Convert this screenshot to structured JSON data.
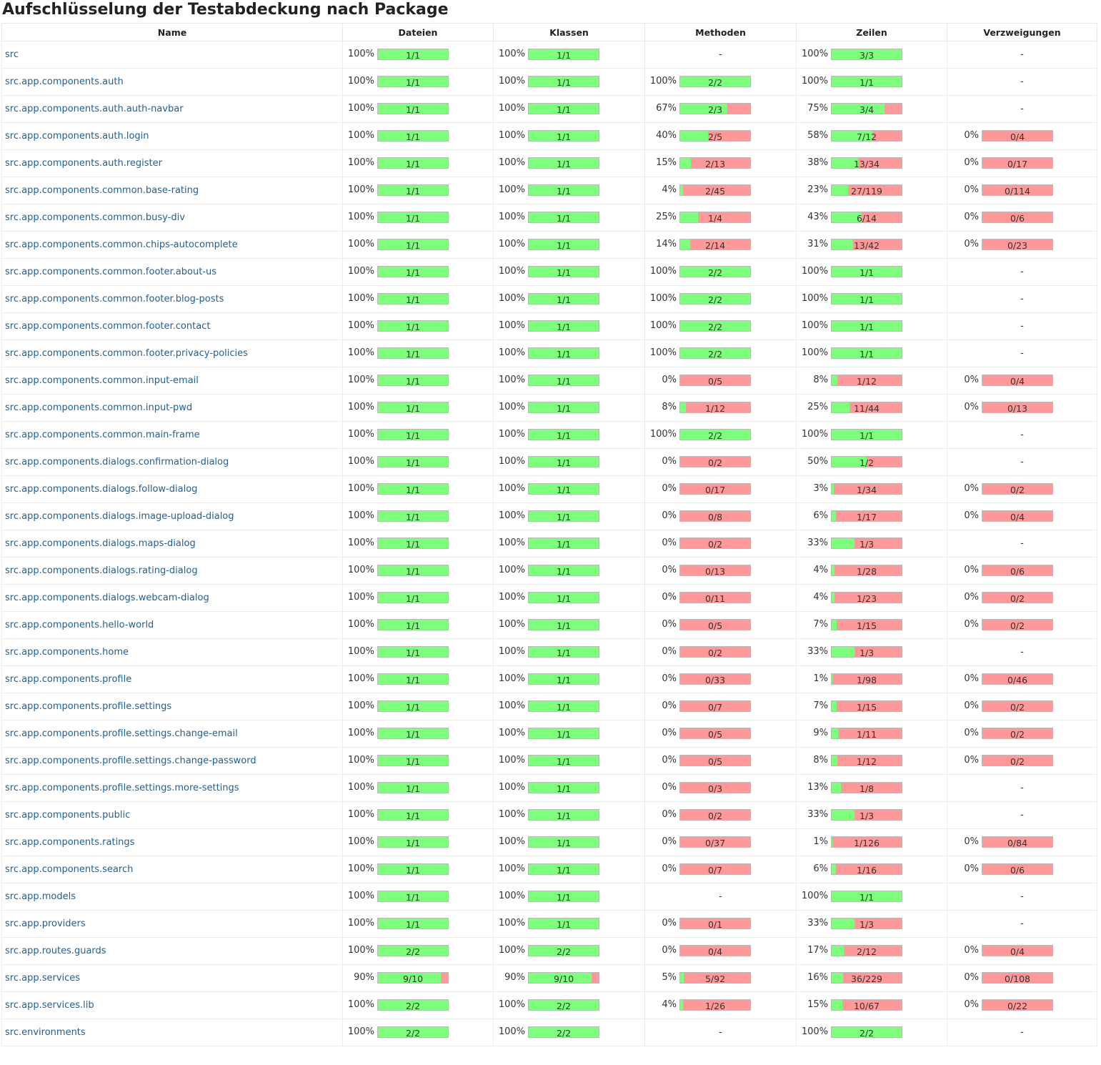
{
  "title": "Aufschlüsselung der Testabdeckung nach Package",
  "columns": [
    "Name",
    "Dateien",
    "Klassen",
    "Methoden",
    "Zeilen",
    "Verzweigungen"
  ],
  "rows": [
    {
      "name": "src",
      "files": {
        "pct": "100%",
        "label": "1/1",
        "value": 1.0
      },
      "classes": {
        "pct": "100%",
        "label": "1/1",
        "value": 1.0
      },
      "methods": null,
      "lines": {
        "pct": "100%",
        "label": "3/3",
        "value": 1.0
      },
      "branches": null
    },
    {
      "name": "src.app.components.auth",
      "files": {
        "pct": "100%",
        "label": "1/1",
        "value": 1.0
      },
      "classes": {
        "pct": "100%",
        "label": "1/1",
        "value": 1.0
      },
      "methods": {
        "pct": "100%",
        "label": "2/2",
        "value": 1.0
      },
      "lines": {
        "pct": "100%",
        "label": "1/1",
        "value": 1.0
      },
      "branches": null
    },
    {
      "name": "src.app.components.auth.auth-navbar",
      "files": {
        "pct": "100%",
        "label": "1/1",
        "value": 1.0
      },
      "classes": {
        "pct": "100%",
        "label": "1/1",
        "value": 1.0
      },
      "methods": {
        "pct": "67%",
        "label": "2/3",
        "value": 0.67
      },
      "lines": {
        "pct": "75%",
        "label": "3/4",
        "value": 0.75
      },
      "branches": null
    },
    {
      "name": "src.app.components.auth.login",
      "files": {
        "pct": "100%",
        "label": "1/1",
        "value": 1.0
      },
      "classes": {
        "pct": "100%",
        "label": "1/1",
        "value": 1.0
      },
      "methods": {
        "pct": "40%",
        "label": "2/5",
        "value": 0.4
      },
      "lines": {
        "pct": "58%",
        "label": "7/12",
        "value": 0.58
      },
      "branches": {
        "pct": "0%",
        "label": "0/4",
        "value": 0
      }
    },
    {
      "name": "src.app.components.auth.register",
      "files": {
        "pct": "100%",
        "label": "1/1",
        "value": 1.0
      },
      "classes": {
        "pct": "100%",
        "label": "1/1",
        "value": 1.0
      },
      "methods": {
        "pct": "15%",
        "label": "2/13",
        "value": 0.15
      },
      "lines": {
        "pct": "38%",
        "label": "13/34",
        "value": 0.38
      },
      "branches": {
        "pct": "0%",
        "label": "0/17",
        "value": 0
      }
    },
    {
      "name": "src.app.components.common.base-rating",
      "files": {
        "pct": "100%",
        "label": "1/1",
        "value": 1.0
      },
      "classes": {
        "pct": "100%",
        "label": "1/1",
        "value": 1.0
      },
      "methods": {
        "pct": "4%",
        "label": "2/45",
        "value": 0.04
      },
      "lines": {
        "pct": "23%",
        "label": "27/119",
        "value": 0.23
      },
      "branches": {
        "pct": "0%",
        "label": "0/114",
        "value": 0
      }
    },
    {
      "name": "src.app.components.common.busy-div",
      "files": {
        "pct": "100%",
        "label": "1/1",
        "value": 1.0
      },
      "classes": {
        "pct": "100%",
        "label": "1/1",
        "value": 1.0
      },
      "methods": {
        "pct": "25%",
        "label": "1/4",
        "value": 0.25
      },
      "lines": {
        "pct": "43%",
        "label": "6/14",
        "value": 0.43
      },
      "branches": {
        "pct": "0%",
        "label": "0/6",
        "value": 0
      }
    },
    {
      "name": "src.app.components.common.chips-autocomplete",
      "files": {
        "pct": "100%",
        "label": "1/1",
        "value": 1.0
      },
      "classes": {
        "pct": "100%",
        "label": "1/1",
        "value": 1.0
      },
      "methods": {
        "pct": "14%",
        "label": "2/14",
        "value": 0.14
      },
      "lines": {
        "pct": "31%",
        "label": "13/42",
        "value": 0.31
      },
      "branches": {
        "pct": "0%",
        "label": "0/23",
        "value": 0
      }
    },
    {
      "name": "src.app.components.common.footer.about-us",
      "files": {
        "pct": "100%",
        "label": "1/1",
        "value": 1.0
      },
      "classes": {
        "pct": "100%",
        "label": "1/1",
        "value": 1.0
      },
      "methods": {
        "pct": "100%",
        "label": "2/2",
        "value": 1.0
      },
      "lines": {
        "pct": "100%",
        "label": "1/1",
        "value": 1.0
      },
      "branches": null
    },
    {
      "name": "src.app.components.common.footer.blog-posts",
      "files": {
        "pct": "100%",
        "label": "1/1",
        "value": 1.0
      },
      "classes": {
        "pct": "100%",
        "label": "1/1",
        "value": 1.0
      },
      "methods": {
        "pct": "100%",
        "label": "2/2",
        "value": 1.0
      },
      "lines": {
        "pct": "100%",
        "label": "1/1",
        "value": 1.0
      },
      "branches": null
    },
    {
      "name": "src.app.components.common.footer.contact",
      "files": {
        "pct": "100%",
        "label": "1/1",
        "value": 1.0
      },
      "classes": {
        "pct": "100%",
        "label": "1/1",
        "value": 1.0
      },
      "methods": {
        "pct": "100%",
        "label": "2/2",
        "value": 1.0
      },
      "lines": {
        "pct": "100%",
        "label": "1/1",
        "value": 1.0
      },
      "branches": null
    },
    {
      "name": "src.app.components.common.footer.privacy-policies",
      "files": {
        "pct": "100%",
        "label": "1/1",
        "value": 1.0
      },
      "classes": {
        "pct": "100%",
        "label": "1/1",
        "value": 1.0
      },
      "methods": {
        "pct": "100%",
        "label": "2/2",
        "value": 1.0
      },
      "lines": {
        "pct": "100%",
        "label": "1/1",
        "value": 1.0
      },
      "branches": null
    },
    {
      "name": "src.app.components.common.input-email",
      "files": {
        "pct": "100%",
        "label": "1/1",
        "value": 1.0
      },
      "classes": {
        "pct": "100%",
        "label": "1/1",
        "value": 1.0
      },
      "methods": {
        "pct": "0%",
        "label": "0/5",
        "value": 0
      },
      "lines": {
        "pct": "8%",
        "label": "1/12",
        "value": 0.08
      },
      "branches": {
        "pct": "0%",
        "label": "0/4",
        "value": 0
      }
    },
    {
      "name": "src.app.components.common.input-pwd",
      "files": {
        "pct": "100%",
        "label": "1/1",
        "value": 1.0
      },
      "classes": {
        "pct": "100%",
        "label": "1/1",
        "value": 1.0
      },
      "methods": {
        "pct": "8%",
        "label": "1/12",
        "value": 0.08
      },
      "lines": {
        "pct": "25%",
        "label": "11/44",
        "value": 0.25
      },
      "branches": {
        "pct": "0%",
        "label": "0/13",
        "value": 0
      }
    },
    {
      "name": "src.app.components.common.main-frame",
      "files": {
        "pct": "100%",
        "label": "1/1",
        "value": 1.0
      },
      "classes": {
        "pct": "100%",
        "label": "1/1",
        "value": 1.0
      },
      "methods": {
        "pct": "100%",
        "label": "2/2",
        "value": 1.0
      },
      "lines": {
        "pct": "100%",
        "label": "1/1",
        "value": 1.0
      },
      "branches": null
    },
    {
      "name": "src.app.components.dialogs.confirmation-dialog",
      "files": {
        "pct": "100%",
        "label": "1/1",
        "value": 1.0
      },
      "classes": {
        "pct": "100%",
        "label": "1/1",
        "value": 1.0
      },
      "methods": {
        "pct": "0%",
        "label": "0/2",
        "value": 0
      },
      "lines": {
        "pct": "50%",
        "label": "1/2",
        "value": 0.5
      },
      "branches": null
    },
    {
      "name": "src.app.components.dialogs.follow-dialog",
      "files": {
        "pct": "100%",
        "label": "1/1",
        "value": 1.0
      },
      "classes": {
        "pct": "100%",
        "label": "1/1",
        "value": 1.0
      },
      "methods": {
        "pct": "0%",
        "label": "0/17",
        "value": 0
      },
      "lines": {
        "pct": "3%",
        "label": "1/34",
        "value": 0.03
      },
      "branches": {
        "pct": "0%",
        "label": "0/2",
        "value": 0
      }
    },
    {
      "name": "src.app.components.dialogs.image-upload-dialog",
      "files": {
        "pct": "100%",
        "label": "1/1",
        "value": 1.0
      },
      "classes": {
        "pct": "100%",
        "label": "1/1",
        "value": 1.0
      },
      "methods": {
        "pct": "0%",
        "label": "0/8",
        "value": 0
      },
      "lines": {
        "pct": "6%",
        "label": "1/17",
        "value": 0.06
      },
      "branches": {
        "pct": "0%",
        "label": "0/4",
        "value": 0
      }
    },
    {
      "name": "src.app.components.dialogs.maps-dialog",
      "files": {
        "pct": "100%",
        "label": "1/1",
        "value": 1.0
      },
      "classes": {
        "pct": "100%",
        "label": "1/1",
        "value": 1.0
      },
      "methods": {
        "pct": "0%",
        "label": "0/2",
        "value": 0
      },
      "lines": {
        "pct": "33%",
        "label": "1/3",
        "value": 0.33
      },
      "branches": null
    },
    {
      "name": "src.app.components.dialogs.rating-dialog",
      "files": {
        "pct": "100%",
        "label": "1/1",
        "value": 1.0
      },
      "classes": {
        "pct": "100%",
        "label": "1/1",
        "value": 1.0
      },
      "methods": {
        "pct": "0%",
        "label": "0/13",
        "value": 0
      },
      "lines": {
        "pct": "4%",
        "label": "1/28",
        "value": 0.04
      },
      "branches": {
        "pct": "0%",
        "label": "0/6",
        "value": 0
      }
    },
    {
      "name": "src.app.components.dialogs.webcam-dialog",
      "files": {
        "pct": "100%",
        "label": "1/1",
        "value": 1.0
      },
      "classes": {
        "pct": "100%",
        "label": "1/1",
        "value": 1.0
      },
      "methods": {
        "pct": "0%",
        "label": "0/11",
        "value": 0
      },
      "lines": {
        "pct": "4%",
        "label": "1/23",
        "value": 0.04
      },
      "branches": {
        "pct": "0%",
        "label": "0/2",
        "value": 0
      }
    },
    {
      "name": "src.app.components.hello-world",
      "files": {
        "pct": "100%",
        "label": "1/1",
        "value": 1.0
      },
      "classes": {
        "pct": "100%",
        "label": "1/1",
        "value": 1.0
      },
      "methods": {
        "pct": "0%",
        "label": "0/5",
        "value": 0
      },
      "lines": {
        "pct": "7%",
        "label": "1/15",
        "value": 0.07
      },
      "branches": {
        "pct": "0%",
        "label": "0/2",
        "value": 0
      }
    },
    {
      "name": "src.app.components.home",
      "files": {
        "pct": "100%",
        "label": "1/1",
        "value": 1.0
      },
      "classes": {
        "pct": "100%",
        "label": "1/1",
        "value": 1.0
      },
      "methods": {
        "pct": "0%",
        "label": "0/2",
        "value": 0
      },
      "lines": {
        "pct": "33%",
        "label": "1/3",
        "value": 0.33
      },
      "branches": null
    },
    {
      "name": "src.app.components.profile",
      "files": {
        "pct": "100%",
        "label": "1/1",
        "value": 1.0
      },
      "classes": {
        "pct": "100%",
        "label": "1/1",
        "value": 1.0
      },
      "methods": {
        "pct": "0%",
        "label": "0/33",
        "value": 0
      },
      "lines": {
        "pct": "1%",
        "label": "1/98",
        "value": 0.01
      },
      "branches": {
        "pct": "0%",
        "label": "0/46",
        "value": 0
      }
    },
    {
      "name": "src.app.components.profile.settings",
      "files": {
        "pct": "100%",
        "label": "1/1",
        "value": 1.0
      },
      "classes": {
        "pct": "100%",
        "label": "1/1",
        "value": 1.0
      },
      "methods": {
        "pct": "0%",
        "label": "0/7",
        "value": 0
      },
      "lines": {
        "pct": "7%",
        "label": "1/15",
        "value": 0.07
      },
      "branches": {
        "pct": "0%",
        "label": "0/2",
        "value": 0
      }
    },
    {
      "name": "src.app.components.profile.settings.change-email",
      "files": {
        "pct": "100%",
        "label": "1/1",
        "value": 1.0
      },
      "classes": {
        "pct": "100%",
        "label": "1/1",
        "value": 1.0
      },
      "methods": {
        "pct": "0%",
        "label": "0/5",
        "value": 0
      },
      "lines": {
        "pct": "9%",
        "label": "1/11",
        "value": 0.09
      },
      "branches": {
        "pct": "0%",
        "label": "0/2",
        "value": 0
      }
    },
    {
      "name": "src.app.components.profile.settings.change-password",
      "files": {
        "pct": "100%",
        "label": "1/1",
        "value": 1.0
      },
      "classes": {
        "pct": "100%",
        "label": "1/1",
        "value": 1.0
      },
      "methods": {
        "pct": "0%",
        "label": "0/5",
        "value": 0
      },
      "lines": {
        "pct": "8%",
        "label": "1/12",
        "value": 0.08
      },
      "branches": {
        "pct": "0%",
        "label": "0/2",
        "value": 0
      }
    },
    {
      "name": "src.app.components.profile.settings.more-settings",
      "files": {
        "pct": "100%",
        "label": "1/1",
        "value": 1.0
      },
      "classes": {
        "pct": "100%",
        "label": "1/1",
        "value": 1.0
      },
      "methods": {
        "pct": "0%",
        "label": "0/3",
        "value": 0
      },
      "lines": {
        "pct": "13%",
        "label": "1/8",
        "value": 0.13
      },
      "branches": null
    },
    {
      "name": "src.app.components.public",
      "files": {
        "pct": "100%",
        "label": "1/1",
        "value": 1.0
      },
      "classes": {
        "pct": "100%",
        "label": "1/1",
        "value": 1.0
      },
      "methods": {
        "pct": "0%",
        "label": "0/2",
        "value": 0
      },
      "lines": {
        "pct": "33%",
        "label": "1/3",
        "value": 0.33
      },
      "branches": null
    },
    {
      "name": "src.app.components.ratings",
      "files": {
        "pct": "100%",
        "label": "1/1",
        "value": 1.0
      },
      "classes": {
        "pct": "100%",
        "label": "1/1",
        "value": 1.0
      },
      "methods": {
        "pct": "0%",
        "label": "0/37",
        "value": 0
      },
      "lines": {
        "pct": "1%",
        "label": "1/126",
        "value": 0.01
      },
      "branches": {
        "pct": "0%",
        "label": "0/84",
        "value": 0
      }
    },
    {
      "name": "src.app.components.search",
      "files": {
        "pct": "100%",
        "label": "1/1",
        "value": 1.0
      },
      "classes": {
        "pct": "100%",
        "label": "1/1",
        "value": 1.0
      },
      "methods": {
        "pct": "0%",
        "label": "0/7",
        "value": 0
      },
      "lines": {
        "pct": "6%",
        "label": "1/16",
        "value": 0.06
      },
      "branches": {
        "pct": "0%",
        "label": "0/6",
        "value": 0
      }
    },
    {
      "name": "src.app.models",
      "files": {
        "pct": "100%",
        "label": "1/1",
        "value": 1.0
      },
      "classes": {
        "pct": "100%",
        "label": "1/1",
        "value": 1.0
      },
      "methods": null,
      "lines": {
        "pct": "100%",
        "label": "1/1",
        "value": 1.0
      },
      "branches": null
    },
    {
      "name": "src.app.providers",
      "files": {
        "pct": "100%",
        "label": "1/1",
        "value": 1.0
      },
      "classes": {
        "pct": "100%",
        "label": "1/1",
        "value": 1.0
      },
      "methods": {
        "pct": "0%",
        "label": "0/1",
        "value": 0
      },
      "lines": {
        "pct": "33%",
        "label": "1/3",
        "value": 0.33
      },
      "branches": null
    },
    {
      "name": "src.app.routes.guards",
      "files": {
        "pct": "100%",
        "label": "2/2",
        "value": 1.0
      },
      "classes": {
        "pct": "100%",
        "label": "2/2",
        "value": 1.0
      },
      "methods": {
        "pct": "0%",
        "label": "0/4",
        "value": 0
      },
      "lines": {
        "pct": "17%",
        "label": "2/12",
        "value": 0.17
      },
      "branches": {
        "pct": "0%",
        "label": "0/4",
        "value": 0
      }
    },
    {
      "name": "src.app.services",
      "files": {
        "pct": "90%",
        "label": "9/10",
        "value": 0.9
      },
      "classes": {
        "pct": "90%",
        "label": "9/10",
        "value": 0.9
      },
      "methods": {
        "pct": "5%",
        "label": "5/92",
        "value": 0.05
      },
      "lines": {
        "pct": "16%",
        "label": "36/229",
        "value": 0.16
      },
      "branches": {
        "pct": "0%",
        "label": "0/108",
        "value": 0
      }
    },
    {
      "name": "src.app.services.lib",
      "files": {
        "pct": "100%",
        "label": "2/2",
        "value": 1.0
      },
      "classes": {
        "pct": "100%",
        "label": "2/2",
        "value": 1.0
      },
      "methods": {
        "pct": "4%",
        "label": "1/26",
        "value": 0.04
      },
      "lines": {
        "pct": "15%",
        "label": "10/67",
        "value": 0.15
      },
      "branches": {
        "pct": "0%",
        "label": "0/22",
        "value": 0
      }
    },
    {
      "name": "src.environments",
      "files": {
        "pct": "100%",
        "label": "2/2",
        "value": 1.0
      },
      "classes": {
        "pct": "100%",
        "label": "2/2",
        "value": 1.0
      },
      "methods": null,
      "lines": {
        "pct": "100%",
        "label": "2/2",
        "value": 1.0
      },
      "branches": null
    }
  ],
  "colors": {
    "covered": "#7dff7d",
    "uncovered": "#ff9999",
    "link": "#1f5f95"
  },
  "empty_marker": "-"
}
